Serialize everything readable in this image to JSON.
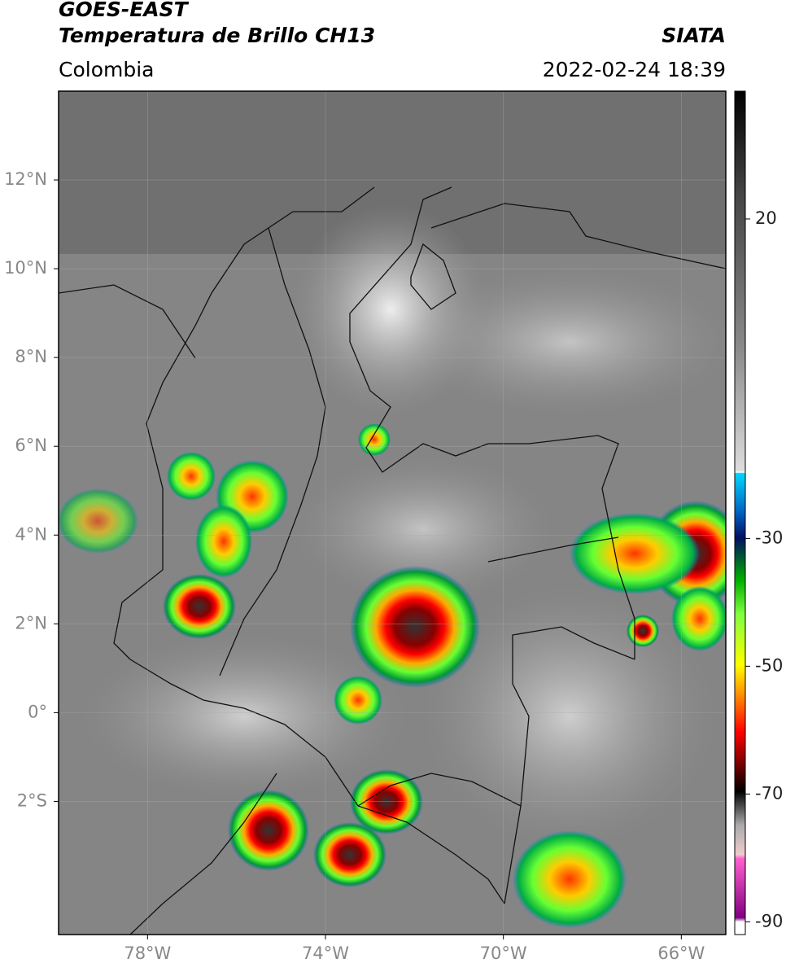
{
  "header": {
    "title": "GOES-EAST",
    "subtitle": "Temperatura de Brillo CH13",
    "region": "Colombia",
    "source": "SIATA",
    "datetime": "2022-02-24 18:39"
  },
  "map": {
    "xlim": [
      -80,
      -65
    ],
    "ylim": [
      -5,
      14
    ],
    "xticks": [
      {
        "value": -78,
        "label": "78°W"
      },
      {
        "value": -74,
        "label": "74°W"
      },
      {
        "value": -70,
        "label": "70°W"
      },
      {
        "value": -66,
        "label": "66°W"
      }
    ],
    "yticks": [
      {
        "value": 12,
        "label": "12°N"
      },
      {
        "value": 10,
        "label": "10°N"
      },
      {
        "value": 8,
        "label": "8°N"
      },
      {
        "value": 6,
        "label": "6°N"
      },
      {
        "value": 4,
        "label": "4°N"
      },
      {
        "value": 2,
        "label": "2°N"
      },
      {
        "value": 0,
        "label": "0°"
      },
      {
        "value": -2,
        "label": "2°S"
      }
    ],
    "grid": true
  },
  "colorbar": {
    "lim": [
      -92,
      40
    ],
    "ticks": [
      20,
      -30,
      -50,
      -70,
      -90
    ]
  }
}
